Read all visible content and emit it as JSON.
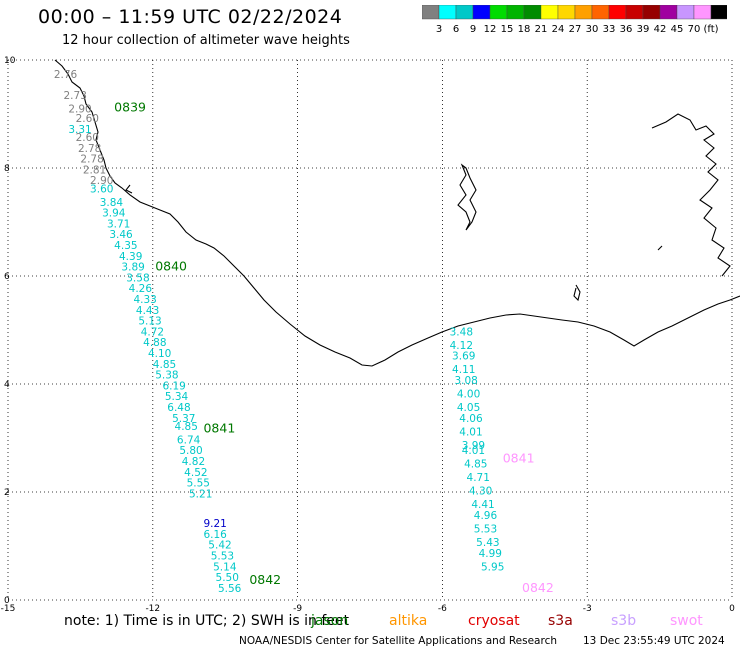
{
  "header": {
    "title": "00:00 – 11:59 UTC 02/22/2024",
    "subtitle": "12 hour collection of altimeter wave heights"
  },
  "colorbar": {
    "colors": [
      "#808080",
      "#00ffff",
      "#00c8c8",
      "#0000ff",
      "#00dc00",
      "#00b400",
      "#008c00",
      "#ffff00",
      "#ffd700",
      "#ffa000",
      "#ff6400",
      "#ff0000",
      "#c80000",
      "#960000",
      "#a000a0",
      "#c896ff",
      "#ff96ff",
      "#000000"
    ],
    "labels": [
      "3",
      "6",
      "9",
      "12",
      "15",
      "18",
      "21",
      "24",
      "27",
      "30",
      "33",
      "36",
      "39",
      "42",
      "45",
      "70",
      "(ft)"
    ]
  },
  "axes": {
    "x_ticks": [
      "-15",
      "-12",
      "-9",
      "-6",
      "-3",
      "0"
    ],
    "y_ticks": [
      "0",
      "2",
      "4",
      "6",
      "8",
      "10"
    ]
  },
  "chart_data": {
    "type": "scatter",
    "xlim": [
      -15,
      0
    ],
    "ylim": [
      0,
      10
    ],
    "grid": true,
    "tracks": [
      {
        "satellite": "jason",
        "pass_labels": [
          {
            "text": "0839",
            "lon": -12.8,
            "lat": 9.05
          },
          {
            "text": "0840",
            "lon": -11.95,
            "lat": 6.1
          },
          {
            "text": "0841",
            "lon": -10.95,
            "lat": 3.1
          },
          {
            "text": "0842",
            "lon": -10.0,
            "lat": 0.3
          }
        ],
        "points": [
          {
            "v": "2.76",
            "c": "#808080",
            "lon": -14.05,
            "lat": 9.67
          },
          {
            "v": "2.73",
            "c": "#808080",
            "lon": -13.85,
            "lat": 9.28
          },
          {
            "v": "2.90",
            "c": "#808080",
            "lon": -13.75,
            "lat": 9.03
          },
          {
            "v": "2.60",
            "c": "#808080",
            "lon": -13.6,
            "lat": 8.85
          },
          {
            "v": "3.31",
            "c": "#00c8c8",
            "lon": -13.75,
            "lat": 8.65
          },
          {
            "v": "2.60",
            "c": "#808080",
            "lon": -13.6,
            "lat": 8.5
          },
          {
            "v": "2.78",
            "c": "#808080",
            "lon": -13.55,
            "lat": 8.3
          },
          {
            "v": "2.78",
            "c": "#808080",
            "lon": -13.5,
            "lat": 8.1
          },
          {
            "v": "2.81",
            "c": "#808080",
            "lon": -13.45,
            "lat": 7.9
          },
          {
            "v": "2.90",
            "c": "#808080",
            "lon": -13.3,
            "lat": 7.7
          },
          {
            "v": "3.60",
            "c": "#00c8c8",
            "lon": -13.3,
            "lat": 7.55
          },
          {
            "v": "3.84",
            "c": "#00c8c8",
            "lon": -13.1,
            "lat": 7.3
          },
          {
            "v": "3.94",
            "c": "#00c8c8",
            "lon": -13.05,
            "lat": 7.1
          },
          {
            "v": "3.71",
            "c": "#00c8c8",
            "lon": -12.95,
            "lat": 6.9
          },
          {
            "v": "3.46",
            "c": "#00c8c8",
            "lon": -12.9,
            "lat": 6.7
          },
          {
            "v": "4.35",
            "c": "#00c8c8",
            "lon": -12.8,
            "lat": 6.5
          },
          {
            "v": "4.39",
            "c": "#00c8c8",
            "lon": -12.7,
            "lat": 6.3
          },
          {
            "v": "3.89",
            "c": "#00c8c8",
            "lon": -12.65,
            "lat": 6.1
          },
          {
            "v": "3.58",
            "c": "#00c8c8",
            "lon": -12.55,
            "lat": 5.9
          },
          {
            "v": "4.26",
            "c": "#00c8c8",
            "lon": -12.5,
            "lat": 5.7
          },
          {
            "v": "4.33",
            "c": "#00c8c8",
            "lon": -12.4,
            "lat": 5.5
          },
          {
            "v": "4.43",
            "c": "#00c8c8",
            "lon": -12.35,
            "lat": 5.3
          },
          {
            "v": "5.13",
            "c": "#00c8c8",
            "lon": -12.3,
            "lat": 5.1
          },
          {
            "v": "4.72",
            "c": "#00c8c8",
            "lon": -12.25,
            "lat": 4.9
          },
          {
            "v": "4.88",
            "c": "#00c8c8",
            "lon": -12.2,
            "lat": 4.7
          },
          {
            "v": "4.10",
            "c": "#00c8c8",
            "lon": -12.1,
            "lat": 4.5
          },
          {
            "v": "4.85",
            "c": "#00c8c8",
            "lon": -12.0,
            "lat": 4.3
          },
          {
            "v": "5.38",
            "c": "#00c8c8",
            "lon": -11.95,
            "lat": 4.1
          },
          {
            "v": "6.19",
            "c": "#00c8c8",
            "lon": -11.8,
            "lat": 3.9
          },
          {
            "v": "5.34",
            "c": "#00c8c8",
            "lon": -11.75,
            "lat": 3.7
          },
          {
            "v": "6.48",
            "c": "#00c8c8",
            "lon": -11.7,
            "lat": 3.5
          },
          {
            "v": "5.37",
            "c": "#00c8c8",
            "lon": -11.6,
            "lat": 3.3
          },
          {
            "v": "4.85",
            "c": "#00c8c8",
            "lon": -11.55,
            "lat": 3.15
          },
          {
            "v": "6.74",
            "c": "#00c8c8",
            "lon": -11.5,
            "lat": 2.9
          },
          {
            "v": "5.80",
            "c": "#00c8c8",
            "lon": -11.45,
            "lat": 2.7
          },
          {
            "v": "4.82",
            "c": "#00c8c8",
            "lon": -11.4,
            "lat": 2.5
          },
          {
            "v": "4.52",
            "c": "#00c8c8",
            "lon": -11.35,
            "lat": 2.3
          },
          {
            "v": "5.55",
            "c": "#00c8c8",
            "lon": -11.3,
            "lat": 2.1
          },
          {
            "v": "5.21",
            "c": "#00c8c8",
            "lon": -11.25,
            "lat": 1.9
          },
          {
            "v": "9.21",
            "c": "#0000c8",
            "lon": -10.95,
            "lat": 1.35
          },
          {
            "v": "6.16",
            "c": "#00c8c8",
            "lon": -10.95,
            "lat": 1.15
          },
          {
            "v": "5.42",
            "c": "#00c8c8",
            "lon": -10.85,
            "lat": 0.95
          },
          {
            "v": "5.53",
            "c": "#00c8c8",
            "lon": -10.8,
            "lat": 0.75
          },
          {
            "v": "5.14",
            "c": "#00c8c8",
            "lon": -10.75,
            "lat": 0.55
          },
          {
            "v": "5.50",
            "c": "#00c8c8",
            "lon": -10.7,
            "lat": 0.35
          },
          {
            "v": "5.56",
            "c": "#00c8c8",
            "lon": -10.65,
            "lat": 0.15
          }
        ]
      },
      {
        "satellite": "swot",
        "pass_labels": [
          {
            "text": "0841",
            "lon": -4.75,
            "lat": 2.55
          },
          {
            "text": "0842",
            "lon": -4.35,
            "lat": 0.15
          }
        ],
        "points": [
          {
            "v": "3.48",
            "c": "#00c8c8",
            "lon": -5.85,
            "lat": 4.9
          },
          {
            "v": "4.12",
            "c": "#00c8c8",
            "lon": -5.85,
            "lat": 4.65
          },
          {
            "v": "3.69",
            "c": "#00c8c8",
            "lon": -5.8,
            "lat": 4.45
          },
          {
            "v": "4.11",
            "c": "#00c8c8",
            "lon": -5.8,
            "lat": 4.2
          },
          {
            "v": "3.08",
            "c": "#00c8c8",
            "lon": -5.75,
            "lat": 4.0
          },
          {
            "v": "4.00",
            "c": "#00c8c8",
            "lon": -5.7,
            "lat": 3.75
          },
          {
            "v": "4.05",
            "c": "#00c8c8",
            "lon": -5.7,
            "lat": 3.5
          },
          {
            "v": "4.06",
            "c": "#00c8c8",
            "lon": -5.65,
            "lat": 3.3
          },
          {
            "v": "4.01",
            "c": "#00c8c8",
            "lon": -5.65,
            "lat": 3.05
          },
          {
            "v": "3.99",
            "c": "#00c8c8",
            "lon": -5.6,
            "lat": 2.8
          },
          {
            "v": "4.01",
            "c": "#00c8c8",
            "lon": -5.6,
            "lat": 2.7
          },
          {
            "v": "4.85",
            "c": "#00c8c8",
            "lon": -5.55,
            "lat": 2.45
          },
          {
            "v": "4.71",
            "c": "#00c8c8",
            "lon": -5.5,
            "lat": 2.2
          },
          {
            "v": "4.30",
            "c": "#00c8c8",
            "lon": -5.45,
            "lat": 1.95
          },
          {
            "v": "4.41",
            "c": "#00c8c8",
            "lon": -5.4,
            "lat": 1.7
          },
          {
            "v": "4.96",
            "c": "#00c8c8",
            "lon": -5.35,
            "lat": 1.5
          },
          {
            "v": "5.53",
            "c": "#00c8c8",
            "lon": -5.35,
            "lat": 1.25
          },
          {
            "v": "5.43",
            "c": "#00c8c8",
            "lon": -5.3,
            "lat": 1.0
          },
          {
            "v": "4.99",
            "c": "#00c8c8",
            "lon": -5.25,
            "lat": 0.8
          },
          {
            "v": "5.95",
            "c": "#00c8c8",
            "lon": -5.2,
            "lat": 0.55
          }
        ]
      }
    ]
  },
  "footer": {
    "note": "note:  1) Time is in UTC; 2) SWH is in feet",
    "legend": [
      {
        "name": "jason",
        "color": "#007800"
      },
      {
        "name": "altika",
        "color": "#ff9600"
      },
      {
        "name": "cryosat",
        "color": "#e10000"
      },
      {
        "name": "s3a",
        "color": "#960000"
      },
      {
        "name": "s3b",
        "color": "#c8a0ff"
      },
      {
        "name": "swot",
        "color": "#ff96ff"
      }
    ],
    "credit": "NOAA/NESDIS Center for Satellite Applications and Research",
    "timestamp": "13 Dec 23:55:49 UTC 2024"
  }
}
